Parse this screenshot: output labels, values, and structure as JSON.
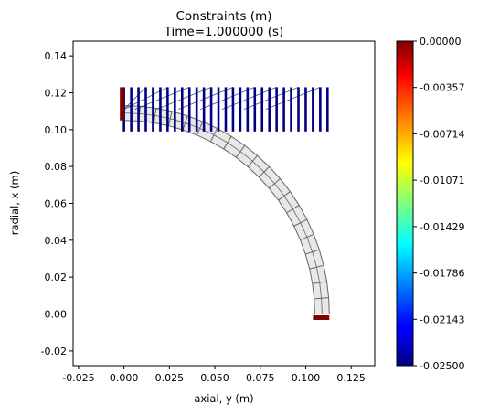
{
  "chart_data": {
    "type": "scatter",
    "title": "Constraints  (m)",
    "subtitle": "Time=1.000000 (s)",
    "xlabel": "axial, y (m)",
    "ylabel": "radial, x (m)",
    "xlim": [
      -0.028,
      0.138
    ],
    "ylim": [
      -0.028,
      0.148
    ],
    "xticks": [
      "-0.025",
      "0.000",
      "0.025",
      "0.050",
      "0.075",
      "0.100",
      "0.125"
    ],
    "yticks": [
      "-0.02",
      "0.00",
      "0.02",
      "0.04",
      "0.06",
      "0.08",
      "0.10",
      "0.12",
      "0.14"
    ],
    "grid": false,
    "mesh": {
      "shape": "quarter-annulus",
      "center": [
        0.0,
        0.0
      ],
      "inner_radius": 0.105,
      "outer_radius": 0.113,
      "fill_color": "#e8e8e8",
      "edge_color": "#666666"
    },
    "axial_constraints": {
      "color_value": -0.025,
      "y_positions": [
        0.0,
        0.004,
        0.008,
        0.012,
        0.016,
        0.02,
        0.024,
        0.028,
        0.032,
        0.036,
        0.04,
        0.044,
        0.048,
        0.052,
        0.056,
        0.06,
        0.064,
        0.068,
        0.072,
        0.076,
        0.08,
        0.084,
        0.088,
        0.092,
        0.096,
        0.1,
        0.104,
        0.108,
        0.112
      ],
      "x_top": 0.123,
      "x_bottom": 0.099
    },
    "fixed_supports": [
      {
        "edge": "left",
        "y": -0.001,
        "x_range": [
          0.105,
          0.123
        ],
        "color_value": 0.0
      },
      {
        "edge": "bottom",
        "x": -0.002,
        "y_range": [
          0.104,
          0.113
        ],
        "color_value": 0.0
      }
    ],
    "colorbar": {
      "colormap": "jet",
      "min": -0.025,
      "max": 0.0,
      "ticks": [
        "0.00000",
        "-0.00357",
        "-0.00714",
        "-0.01071",
        "-0.01429",
        "-0.01786",
        "-0.02143",
        "-0.02500"
      ]
    }
  }
}
